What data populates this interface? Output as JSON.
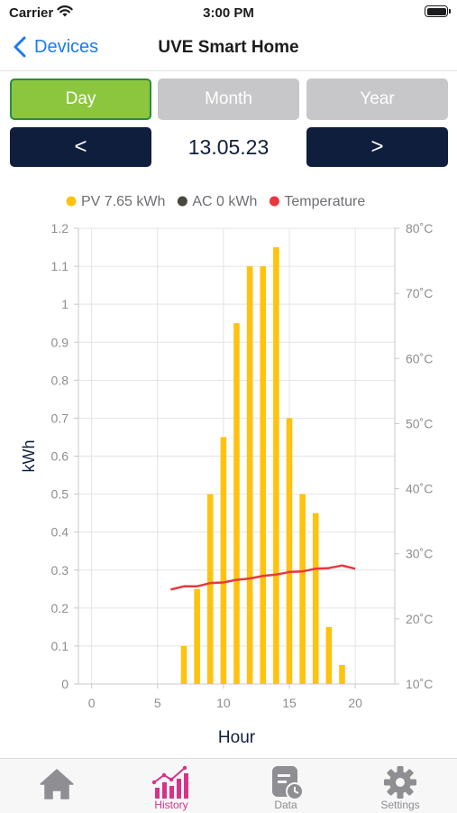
{
  "status_bar": {
    "carrier": "Carrier",
    "time": "3:00 PM"
  },
  "nav": {
    "back_label": "Devices",
    "title": "UVE Smart Home"
  },
  "period_tabs": {
    "day": "Day",
    "month": "Month",
    "year": "Year",
    "selected": "Day"
  },
  "date_nav": {
    "prev_label": "<",
    "next_label": ">",
    "date": "13.05.23"
  },
  "tab_bar": {
    "items": [
      {
        "label": "",
        "icon": "home-icon"
      },
      {
        "label": "History",
        "icon": "history-chart-icon",
        "active": true
      },
      {
        "label": "Data",
        "icon": "data-clock-icon"
      },
      {
        "label": "Settings",
        "icon": "gear-icon"
      }
    ]
  },
  "colors": {
    "accent": "#1a7bf2",
    "active_tab": "#d6338a",
    "pv": "#ffc20e",
    "ac": "#4a473c",
    "temperature": "#e8383d",
    "selected_segment": "#8cc63f",
    "dark_button": "#0f1e3d"
  },
  "chart_data": {
    "type": "bar",
    "legend": [
      {
        "label": "PV 7.65 kWh",
        "color": "#ffc20e"
      },
      {
        "label": "AC 0 kWh",
        "color": "#4a473c"
      },
      {
        "label": "Temperature",
        "color": "#e8383d"
      }
    ],
    "xlabel": "Hour",
    "ylabel": "kWh",
    "xlim": [
      -1,
      23
    ],
    "ylim": [
      0,
      1.2
    ],
    "y2lim": [
      10,
      80
    ],
    "x_ticks": [
      0,
      5,
      10,
      15,
      20
    ],
    "y_ticks": [
      "0",
      "0.1",
      "0.2",
      "0.3",
      "0.4",
      "0.5",
      "0.6",
      "0.7",
      "0.8",
      "0.9",
      "1",
      "1.1",
      "1.2"
    ],
    "y2_ticks": [
      "10˚C",
      "20˚C",
      "30˚C",
      "40˚C",
      "50˚C",
      "60˚C",
      "70˚C",
      "80˚C"
    ],
    "series": [
      {
        "name": "PV 7.65 kWh",
        "kind": "bar",
        "x": [
          7,
          8,
          9,
          10,
          11,
          12,
          13,
          14,
          15,
          16,
          17,
          18,
          19
        ],
        "values": [
          0.1,
          0.25,
          0.5,
          0.65,
          0.95,
          1.1,
          1.1,
          1.15,
          0.7,
          0.5,
          0.45,
          0.15,
          0.05
        ]
      },
      {
        "name": "AC 0 kWh",
        "kind": "bar",
        "x": [
          7,
          8,
          9,
          10,
          11,
          12,
          13,
          14,
          15,
          16,
          17,
          18,
          19
        ],
        "values": [
          0,
          0,
          0,
          0,
          0,
          0,
          0,
          0,
          0,
          0,
          0,
          0,
          0
        ]
      },
      {
        "name": "Temperature",
        "kind": "line",
        "axis": "right",
        "x": [
          6,
          7,
          8,
          9,
          10,
          11,
          12,
          13,
          14,
          15,
          16,
          17,
          18,
          19,
          20
        ],
        "values": [
          24.5,
          25.0,
          25.0,
          25.5,
          25.6,
          26.0,
          26.2,
          26.6,
          26.8,
          27.2,
          27.3,
          27.7,
          27.8,
          28.2,
          27.7
        ]
      }
    ],
    "grid": true,
    "legend_position": "top"
  }
}
